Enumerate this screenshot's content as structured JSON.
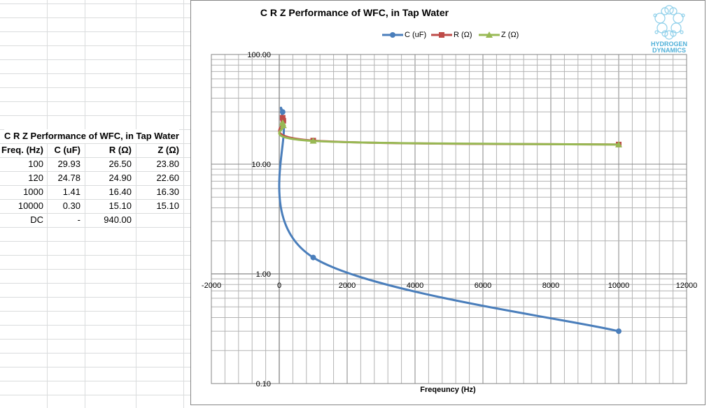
{
  "sheet": {
    "title": "C R Z Performance of WFC, in Tap Water",
    "headers": [
      "Freq. (Hz)",
      "C (uF)",
      "R (Ω)",
      "Z (Ω)"
    ],
    "rows": [
      [
        "100",
        "29.93",
        "26.50",
        "23.80"
      ],
      [
        "120",
        "24.78",
        "24.90",
        "22.60"
      ],
      [
        "1000",
        "1.41",
        "16.40",
        "16.30"
      ],
      [
        "10000",
        "0.30",
        "15.10",
        "15.10"
      ],
      [
        "DC",
        "-",
        "940.00",
        ""
      ]
    ]
  },
  "logo": {
    "line1": "HYDROGEN",
    "line2": "DYNAMICS",
    "color": "#4fb0d8"
  },
  "chart_data": {
    "type": "scatter",
    "title": "C R Z Performance of WFC, in Tap Water",
    "xlabel": "Freqeuncy (Hz)",
    "ylabel": "",
    "xlim": [
      -2000,
      12000
    ],
    "ylim": [
      0.1,
      100
    ],
    "yscale": "log",
    "smooth": true,
    "grid": true,
    "legend": "top",
    "xticks": [
      "-2000",
      "0",
      "2000",
      "4000",
      "6000",
      "8000",
      "10000",
      "12000"
    ],
    "yticks": [
      "0.10",
      "1.00",
      "10.00",
      "100.00"
    ],
    "x": [
      100,
      120,
      1000,
      10000
    ],
    "series": [
      {
        "name": "C (uF)",
        "values": [
          29.93,
          24.78,
          1.41,
          0.3
        ],
        "color": "#4a7ebb",
        "marker": "circle"
      },
      {
        "name": "R (Ω)",
        "values": [
          26.5,
          24.9,
          16.4,
          15.1
        ],
        "color": "#be4b48",
        "marker": "square"
      },
      {
        "name": "Z (Ω)",
        "values": [
          23.8,
          22.6,
          16.3,
          15.1
        ],
        "color": "#98b954",
        "marker": "triangle"
      }
    ]
  }
}
